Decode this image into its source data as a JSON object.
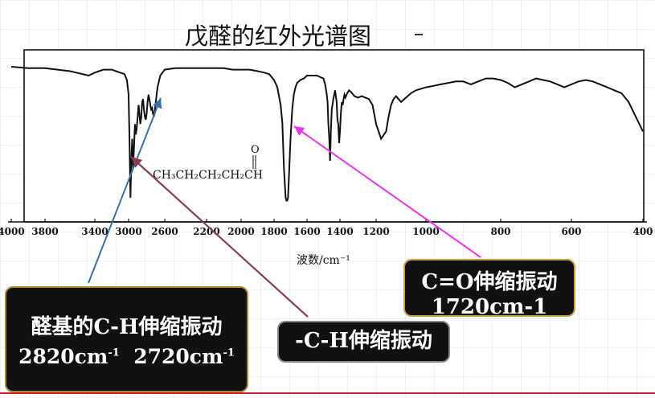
{
  "chart_data": {
    "type": "line",
    "title": "戊醛的红外光谱图",
    "xlabel": "波数/cm⁻¹",
    "ylabel": "",
    "x_ticks": [
      4000,
      3800,
      3400,
      3000,
      2600,
      2200,
      2000,
      1800,
      1600,
      1400,
      1200,
      1000,
      800,
      600,
      400
    ],
    "x_tick_labels": [
      "4000",
      "3800",
      "3400",
      "3000",
      "2600",
      "2200",
      "2000",
      "1800",
      "1600",
      "1400",
      "1200",
      "1000",
      "800",
      "600",
      "400"
    ],
    "xlim": [
      4000,
      400
    ],
    "series": [
      {
        "x": [
          4000,
          3900,
          3800,
          3700,
          3600,
          3550,
          3500,
          3450,
          3400,
          3350,
          3300,
          3200,
          3150,
          3100,
          3050,
          3020,
          3000,
          2990,
          2980,
          2970,
          2960,
          2950,
          2940,
          2930,
          2920,
          2910,
          2900,
          2890,
          2880,
          2870,
          2860,
          2850,
          2840,
          2830,
          2820,
          2810,
          2800,
          2790,
          2780,
          2770,
          2760,
          2750,
          2740,
          2730,
          2720,
          2710,
          2700,
          2680,
          2650,
          2600,
          2500,
          2400,
          2300,
          2200,
          2100,
          2050,
          2000,
          1950,
          1900,
          1860,
          1830,
          1800,
          1780,
          1770,
          1760,
          1750,
          1740,
          1730,
          1725,
          1720,
          1715,
          1710,
          1700,
          1690,
          1680,
          1670,
          1660,
          1640,
          1620,
          1600,
          1580,
          1560,
          1540,
          1520,
          1500,
          1490,
          1480,
          1475,
          1470,
          1465,
          1460,
          1455,
          1450,
          1440,
          1430,
          1420,
          1415,
          1410,
          1405,
          1400,
          1395,
          1390,
          1385,
          1380,
          1375,
          1370,
          1360,
          1350,
          1340,
          1320,
          1300,
          1280,
          1260,
          1240,
          1220,
          1200,
          1180,
          1160,
          1150,
          1140,
          1130,
          1120,
          1110,
          1100,
          1080,
          1060,
          1040,
          1020,
          1000,
          980,
          960,
          940,
          920,
          900,
          880,
          860,
          840,
          820,
          800,
          780,
          760,
          740,
          720,
          700,
          680,
          660,
          640,
          620,
          600,
          580,
          560,
          540,
          520,
          500,
          480,
          460,
          440,
          420,
          400
        ],
        "y": [
          94,
          93,
          93,
          92,
          91,
          90,
          89,
          88,
          90,
          91,
          92,
          92,
          91,
          90,
          89,
          85,
          75,
          45,
          5,
          30,
          45,
          25,
          40,
          55,
          48,
          52,
          60,
          68,
          62,
          55,
          60,
          70,
          72,
          65,
          60,
          58,
          62,
          70,
          75,
          72,
          68,
          65,
          66,
          62,
          60,
          64,
          70,
          80,
          88,
          92,
          93,
          93,
          93,
          93,
          93,
          92,
          92,
          92,
          91,
          90,
          89,
          85,
          80,
          74,
          68,
          56,
          25,
          5,
          3,
          3,
          5,
          18,
          45,
          65,
          75,
          80,
          83,
          85,
          86,
          88,
          88,
          88,
          88,
          87,
          86,
          82,
          75,
          70,
          55,
          45,
          30,
          50,
          65,
          72,
          78,
          70,
          58,
          55,
          42,
          50,
          62,
          70,
          68,
          72,
          75,
          73,
          76,
          78,
          77,
          74,
          73,
          74,
          73,
          72,
          68,
          55,
          45,
          50,
          60,
          68,
          72,
          74,
          72,
          70,
          73,
          76,
          78,
          79,
          80,
          81,
          82,
          83,
          84,
          84,
          82,
          84,
          86,
          86,
          85,
          83,
          80,
          82,
          84,
          86,
          85,
          84,
          82,
          80,
          82,
          84,
          85,
          84,
          82,
          80,
          78,
          76,
          70,
          60,
          50
        ]
      }
    ],
    "annotations": {
      "structure_formula": "CH₃CH₂CH₂CH₂CH",
      "carbonyl_o": "O"
    },
    "colors": {
      "curve": "#111111",
      "arrow_ch_aldehyde": "#3a6fa8",
      "arrow_ch": "#8a3a5a",
      "arrow_co": "#ee33ee"
    }
  },
  "callouts": {
    "aldehyde_ch": {
      "line1": "醛基的C-H伸缩振动",
      "line2a": "2820cm",
      "line2a_sup": "-1",
      "line2b": "2720cm",
      "line2b_sup": "-1"
    },
    "ch": {
      "line1": "-C-H伸缩振动"
    },
    "co": {
      "line1": "C=O伸缩振动",
      "line2": "1720cm-1"
    }
  }
}
